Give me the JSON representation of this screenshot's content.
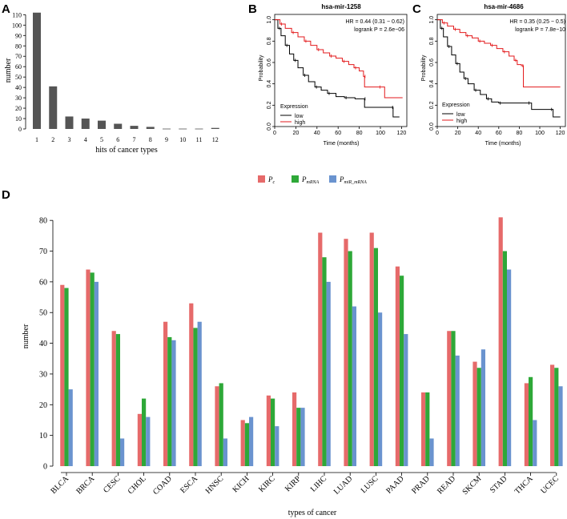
{
  "panels": {
    "a": "A",
    "b": "B",
    "c": "C",
    "d": "D"
  },
  "colors": {
    "bar_a": "#555555",
    "km_low": "#000000",
    "km_high": "#e31a1c",
    "p_c": "#e66a6a",
    "p_mrna": "#2ea838",
    "p_mir": "#6a93cf"
  },
  "chart_data": [
    {
      "id": "A",
      "type": "bar",
      "categories": [
        "1",
        "2",
        "3",
        "4",
        "5",
        "6",
        "7",
        "8",
        "9",
        "10",
        "11",
        "12"
      ],
      "values": [
        112,
        41,
        12,
        10,
        8,
        5,
        3,
        2,
        0,
        0,
        0,
        1
      ],
      "xlabel": "hits of cancer types",
      "ylabel": "number",
      "yticks": [
        0,
        10,
        20,
        30,
        40,
        50,
        60,
        70,
        80,
        90,
        100,
        110
      ],
      "ylim": [
        0,
        118
      ]
    },
    {
      "id": "B",
      "type": "line",
      "title": "hsa-mir-1258",
      "annotation": [
        "HR = 0.44 (0.31 − 0.62)",
        "logrank P = 2.6e−06"
      ],
      "xlabel": "Time (months)",
      "ylabel": "Probability",
      "xticks": [
        0,
        20,
        40,
        60,
        80,
        100,
        120
      ],
      "yticks": [
        0.0,
        0.2,
        0.4,
        0.6,
        0.8,
        1.0
      ],
      "xlim": [
        0,
        125
      ],
      "ylim": [
        0,
        1.05
      ],
      "legend_title": "Expression",
      "legend_position": "bottom-left",
      "series": [
        {
          "name": "low",
          "points": [
            [
              0,
              1
            ],
            [
              3,
              0.92
            ],
            [
              6,
              0.85
            ],
            [
              10,
              0.76
            ],
            [
              14,
              0.68
            ],
            [
              18,
              0.62
            ],
            [
              22,
              0.55
            ],
            [
              27,
              0.48
            ],
            [
              32,
              0.42
            ],
            [
              38,
              0.37
            ],
            [
              44,
              0.34
            ],
            [
              50,
              0.31
            ],
            [
              58,
              0.28
            ],
            [
              66,
              0.27
            ],
            [
              76,
              0.26
            ],
            [
              84,
              0.26
            ],
            [
              85,
              0.18
            ],
            [
              110,
              0.18
            ],
            [
              112,
              0.09
            ],
            [
              118,
              0.09
            ]
          ]
        },
        {
          "name": "high",
          "points": [
            [
              0,
              1
            ],
            [
              5,
              0.96
            ],
            [
              10,
              0.92
            ],
            [
              16,
              0.88
            ],
            [
              22,
              0.84
            ],
            [
              28,
              0.8
            ],
            [
              34,
              0.76
            ],
            [
              40,
              0.72
            ],
            [
              46,
              0.69
            ],
            [
              52,
              0.66
            ],
            [
              58,
              0.64
            ],
            [
              64,
              0.61
            ],
            [
              70,
              0.58
            ],
            [
              75,
              0.55
            ],
            [
              80,
              0.52
            ],
            [
              84,
              0.47
            ],
            [
              85,
              0.37
            ],
            [
              98,
              0.37
            ],
            [
              104,
              0.27
            ],
            [
              121,
              0.27
            ]
          ]
        }
      ]
    },
    {
      "id": "C",
      "type": "line",
      "title": "hsa-mir-4686",
      "annotation": [
        "HR = 0.35 (0.25 − 0.5)",
        "logrank P = 7.8e−10"
      ],
      "xlabel": "Time (months)",
      "ylabel": "Probability",
      "xticks": [
        0,
        20,
        40,
        60,
        80,
        100,
        120
      ],
      "yticks": [
        0.0,
        0.2,
        0.4,
        0.6,
        0.8,
        1.0
      ],
      "xlim": [
        0,
        125
      ],
      "ylim": [
        0,
        1.05
      ],
      "legend_title": "Expression",
      "legend_position": "bottom-left",
      "series": [
        {
          "name": "low",
          "points": [
            [
              0,
              1
            ],
            [
              3,
              0.92
            ],
            [
              6,
              0.84
            ],
            [
              10,
              0.75
            ],
            [
              14,
              0.67
            ],
            [
              18,
              0.59
            ],
            [
              22,
              0.51
            ],
            [
              26,
              0.45
            ],
            [
              30,
              0.4
            ],
            [
              36,
              0.34
            ],
            [
              42,
              0.3
            ],
            [
              48,
              0.26
            ],
            [
              53,
              0.23
            ],
            [
              60,
              0.22
            ],
            [
              80,
              0.22
            ],
            [
              88,
              0.22
            ],
            [
              92,
              0.16
            ],
            [
              110,
              0.16
            ],
            [
              113,
              0.09
            ],
            [
              120,
              0.09
            ]
          ]
        },
        {
          "name": "high",
          "points": [
            [
              0,
              1
            ],
            [
              5,
              0.97
            ],
            [
              10,
              0.94
            ],
            [
              16,
              0.91
            ],
            [
              22,
              0.88
            ],
            [
              28,
              0.85
            ],
            [
              34,
              0.83
            ],
            [
              40,
              0.8
            ],
            [
              46,
              0.78
            ],
            [
              52,
              0.76
            ],
            [
              58,
              0.73
            ],
            [
              64,
              0.7
            ],
            [
              70,
              0.66
            ],
            [
              75,
              0.62
            ],
            [
              78,
              0.58
            ],
            [
              82,
              0.57
            ],
            [
              84,
              0.37
            ],
            [
              120,
              0.37
            ]
          ]
        }
      ]
    },
    {
      "id": "D",
      "type": "bar",
      "xlabel": "types of cancer",
      "ylabel": "number",
      "yticks": [
        0,
        10,
        20,
        30,
        40,
        50,
        60,
        70,
        80
      ],
      "ylim": [
        0,
        85
      ],
      "categories": [
        "BLCA",
        "BRCA",
        "CESC",
        "CHOL",
        "COAD",
        "ESCA",
        "HNSC",
        "KICH",
        "KIRC",
        "KIRP",
        "LIHC",
        "LUAD",
        "LUSC",
        "PAAD",
        "PRAD",
        "READ",
        "SKCM",
        "STAD",
        "THCA",
        "UCEC"
      ],
      "legend_position": "top-center",
      "series": [
        {
          "name": "P",
          "sub": "c",
          "values": [
            59,
            64,
            44,
            17,
            47,
            53,
            26,
            15,
            23,
            24,
            76,
            74,
            76,
            65,
            24,
            44,
            34,
            81,
            27,
            33
          ]
        },
        {
          "name": "P",
          "sub": "mRNA",
          "values": [
            58,
            63,
            43,
            22,
            42,
            45,
            27,
            14,
            22,
            19,
            68,
            70,
            71,
            62,
            24,
            44,
            32,
            70,
            29,
            32
          ]
        },
        {
          "name": "P",
          "sub": "miR_mRNA",
          "values": [
            25,
            60,
            9,
            16,
            41,
            47,
            9,
            16,
            13,
            19,
            60,
            52,
            50,
            43,
            9,
            36,
            38,
            64,
            15,
            26
          ]
        }
      ]
    }
  ]
}
